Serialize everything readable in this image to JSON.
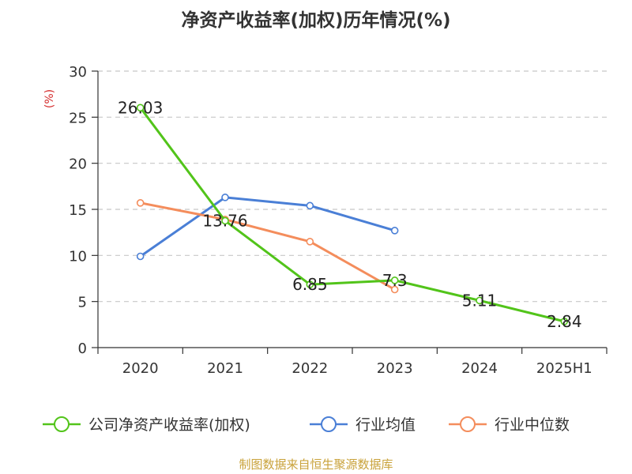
{
  "title": "净资产收益率(加权)历年情况(%)",
  "source": "制图数据来自恒生聚源数据库",
  "chart_data": {
    "type": "line",
    "title": "净资产收益率(加权)历年情况(%)",
    "ylabel": "(%)",
    "categories": [
      "2020",
      "2021",
      "2022",
      "2023",
      "2024",
      "2025H1"
    ],
    "ylim": [
      0,
      30
    ],
    "yticks": [
      0,
      5,
      10,
      15,
      20,
      25,
      30
    ],
    "grid": true,
    "legend_position": "bottom",
    "series": [
      {
        "name": "公司净资产收益率(加权)",
        "color": "#52c41a",
        "values": [
          26.03,
          13.76,
          6.85,
          7.3,
          5.11,
          2.84
        ],
        "labels": [
          "26.03",
          "13.76",
          "6.85",
          "7.3",
          "5.11",
          "2.84"
        ]
      },
      {
        "name": "行业均值",
        "color": "#4a7fd6",
        "values": [
          9.9,
          16.3,
          15.4,
          12.7,
          null,
          null
        ]
      },
      {
        "name": "行业中位数",
        "color": "#f48d5c",
        "values": [
          15.7,
          13.9,
          11.5,
          6.3,
          null,
          null
        ]
      }
    ]
  }
}
